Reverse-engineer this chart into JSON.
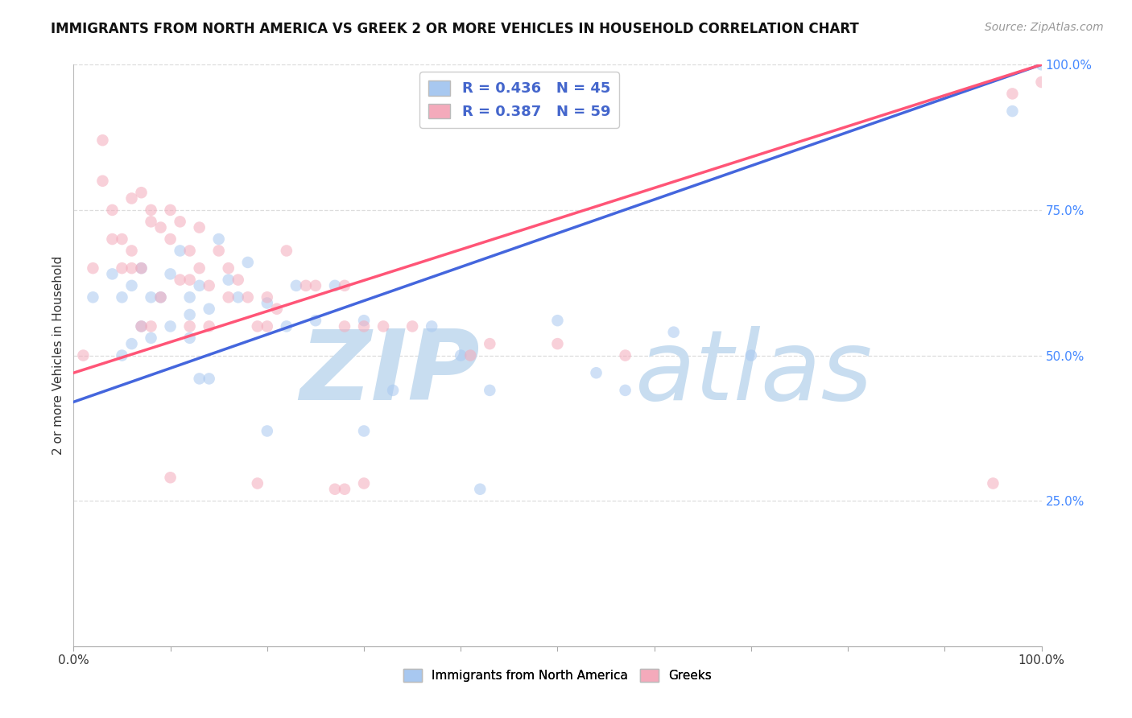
{
  "title": "IMMIGRANTS FROM NORTH AMERICA VS GREEK 2 OR MORE VEHICLES IN HOUSEHOLD CORRELATION CHART",
  "source": "Source: ZipAtlas.com",
  "ylabel": "2 or more Vehicles in Household",
  "xlim": [
    0,
    1
  ],
  "ylim": [
    0,
    1
  ],
  "ytick_labels": [
    "25.0%",
    "50.0%",
    "75.0%",
    "100.0%"
  ],
  "ytick_values": [
    0.25,
    0.5,
    0.75,
    1.0
  ],
  "xtick_values": [
    0.0,
    0.1,
    0.2,
    0.3,
    0.4,
    0.5,
    0.6,
    0.7,
    0.8,
    0.9,
    1.0
  ],
  "legend_blue_r": "R = 0.436",
  "legend_blue_n": "N = 45",
  "legend_pink_r": "R = 0.387",
  "legend_pink_n": "N = 59",
  "blue_color": "#A8C8F0",
  "pink_color": "#F4AABB",
  "blue_line_color": "#4466DD",
  "pink_line_color": "#FF5577",
  "watermark_zip": "ZIP",
  "watermark_atlas": "atlas",
  "watermark_color": "#C8DDF0",
  "blue_scatter_x": [
    0.02,
    0.04,
    0.05,
    0.05,
    0.06,
    0.06,
    0.07,
    0.07,
    0.08,
    0.08,
    0.09,
    0.1,
    0.1,
    0.11,
    0.12,
    0.12,
    0.12,
    0.13,
    0.14,
    0.15,
    0.16,
    0.17,
    0.18,
    0.2,
    0.22,
    0.23,
    0.25,
    0.27,
    0.3,
    0.33,
    0.37,
    0.4,
    0.43,
    0.5,
    0.54,
    0.57,
    0.62,
    0.7,
    0.13,
    0.14,
    0.2,
    0.3,
    0.42,
    0.97,
    1.0
  ],
  "blue_scatter_y": [
    0.6,
    0.64,
    0.6,
    0.5,
    0.62,
    0.52,
    0.65,
    0.55,
    0.6,
    0.53,
    0.6,
    0.64,
    0.55,
    0.68,
    0.6,
    0.57,
    0.53,
    0.62,
    0.58,
    0.7,
    0.63,
    0.6,
    0.66,
    0.59,
    0.55,
    0.62,
    0.56,
    0.62,
    0.56,
    0.44,
    0.55,
    0.5,
    0.44,
    0.56,
    0.47,
    0.44,
    0.54,
    0.5,
    0.46,
    0.46,
    0.37,
    0.37,
    0.27,
    0.92,
    1.0
  ],
  "pink_scatter_x": [
    0.01,
    0.02,
    0.03,
    0.03,
    0.04,
    0.04,
    0.05,
    0.06,
    0.06,
    0.07,
    0.07,
    0.08,
    0.08,
    0.09,
    0.09,
    0.1,
    0.1,
    0.11,
    0.11,
    0.12,
    0.12,
    0.13,
    0.13,
    0.14,
    0.15,
    0.16,
    0.16,
    0.17,
    0.18,
    0.19,
    0.2,
    0.2,
    0.21,
    0.22,
    0.24,
    0.25,
    0.28,
    0.28,
    0.3,
    0.32,
    0.35,
    0.41,
    0.43,
    0.5,
    0.57,
    0.28,
    0.19,
    0.3,
    0.1,
    0.05,
    0.06,
    0.07,
    0.08,
    0.12,
    0.14,
    0.27,
    0.95,
    0.97,
    1.0
  ],
  "pink_scatter_y": [
    0.5,
    0.65,
    0.8,
    0.87,
    0.75,
    0.7,
    0.7,
    0.77,
    0.68,
    0.78,
    0.65,
    0.75,
    0.73,
    0.72,
    0.6,
    0.75,
    0.7,
    0.73,
    0.63,
    0.68,
    0.63,
    0.72,
    0.65,
    0.62,
    0.68,
    0.65,
    0.6,
    0.63,
    0.6,
    0.55,
    0.6,
    0.55,
    0.58,
    0.68,
    0.62,
    0.62,
    0.62,
    0.55,
    0.55,
    0.55,
    0.55,
    0.5,
    0.52,
    0.52,
    0.5,
    0.27,
    0.28,
    0.28,
    0.29,
    0.65,
    0.65,
    0.55,
    0.55,
    0.55,
    0.55,
    0.27,
    0.28,
    0.95,
    0.97
  ],
  "blue_line_x0": 0.0,
  "blue_line_x1": 1.0,
  "blue_line_y0": 0.42,
  "blue_line_y1": 1.0,
  "pink_line_x0": 0.0,
  "pink_line_x1": 1.0,
  "pink_line_y0": 0.47,
  "pink_line_y1": 1.0,
  "title_fontsize": 12,
  "source_fontsize": 10,
  "axis_label_fontsize": 11,
  "tick_fontsize": 11,
  "legend_fontsize": 13,
  "scatter_size": 110,
  "scatter_alpha": 0.55,
  "line_width": 2.5,
  "background_color": "#FFFFFF",
  "grid_color": "#DDDDDD",
  "ytick_color": "#4488FF",
  "xtick_color": "#333333",
  "legend_text_color": "#4466CC",
  "bottom_label_blue": "Immigrants from North America",
  "bottom_label_pink": "Greeks"
}
